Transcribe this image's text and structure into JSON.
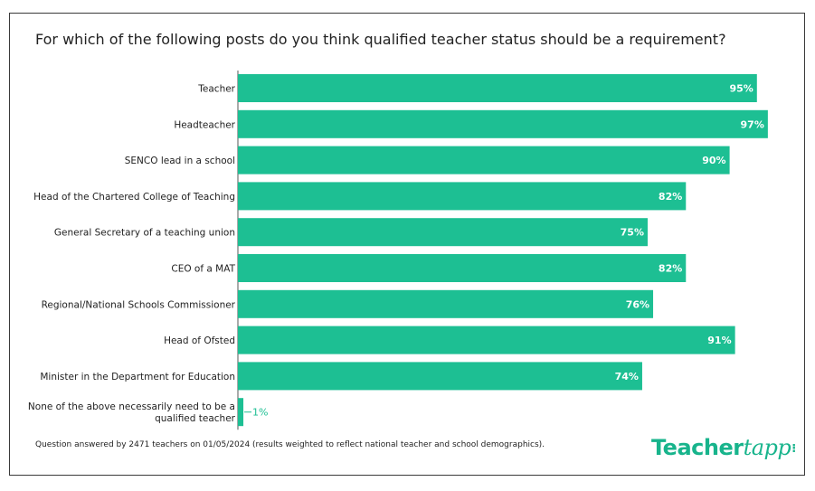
{
  "title": "For which of the following posts do you think qualified teacher status should be a requirement?",
  "footnote": "Question answered by 2471 teachers on 01/05/2024 (results weighted to reflect national teacher and school demographics).",
  "logo": {
    "text_main": "Teacher",
    "text_script": "tapp",
    "icon": "spark-icon"
  },
  "colors": {
    "bar": "#1dbf93",
    "label_inside": "#ffffff",
    "label_outside": "#1dbf93",
    "axis": "#555555"
  },
  "chart_data": {
    "type": "bar",
    "orientation": "horizontal",
    "categories": [
      [
        "Teacher"
      ],
      [
        "Headteacher"
      ],
      [
        "SENCO lead in a school"
      ],
      [
        "Head of the Chartered College of Teaching"
      ],
      [
        "General Secretary of a teaching union"
      ],
      [
        "CEO of a MAT"
      ],
      [
        "Regional/National Schools Commissioner"
      ],
      [
        "Head of Ofsted"
      ],
      [
        "Minister in the Department for Education"
      ],
      [
        "None of the above necessarily need to be a",
        "qualified teacher"
      ]
    ],
    "values": [
      95,
      97,
      90,
      82,
      75,
      82,
      76,
      91,
      74,
      1
    ],
    "value_labels": [
      "95%",
      "97%",
      "90%",
      "82%",
      "75%",
      "82%",
      "76%",
      "91%",
      "74%",
      "1%"
    ],
    "xlim": [
      0,
      100
    ],
    "grid": false,
    "legend": "none"
  }
}
